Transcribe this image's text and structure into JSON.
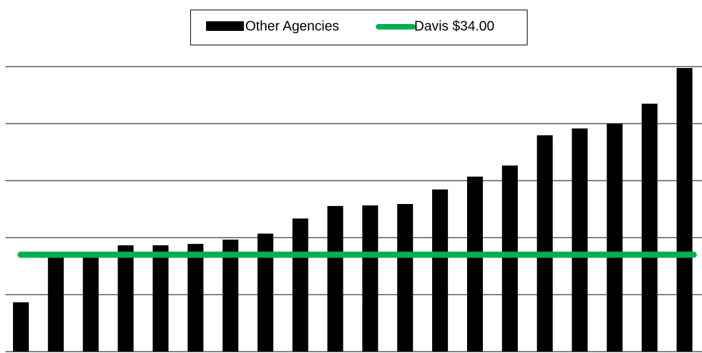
{
  "chart_data": {
    "type": "bar",
    "categories": [
      null,
      null,
      null,
      null,
      null,
      null,
      null,
      null,
      null,
      null,
      null,
      null,
      null,
      null,
      null,
      null,
      null,
      null,
      null,
      null
    ],
    "series": [
      {
        "name": "Other Agencies",
        "color": "#000000",
        "values": [
          17.3,
          34.5,
          34.9,
          37.3,
          37.3,
          37.8,
          39.3,
          41.4,
          46.7,
          51.1,
          51.3,
          51.8,
          56.9,
          61.4,
          65.3,
          75.9,
          78.3,
          80,
          87,
          99.5
        ]
      },
      {
        "name": "Davis $34.00",
        "type": "hline",
        "color": "#00b050",
        "value": 34
      }
    ],
    "ylim": [
      0,
      100
    ],
    "yticks": [
      0,
      20,
      40,
      60,
      80,
      100
    ],
    "grid": true,
    "legend": "top"
  }
}
